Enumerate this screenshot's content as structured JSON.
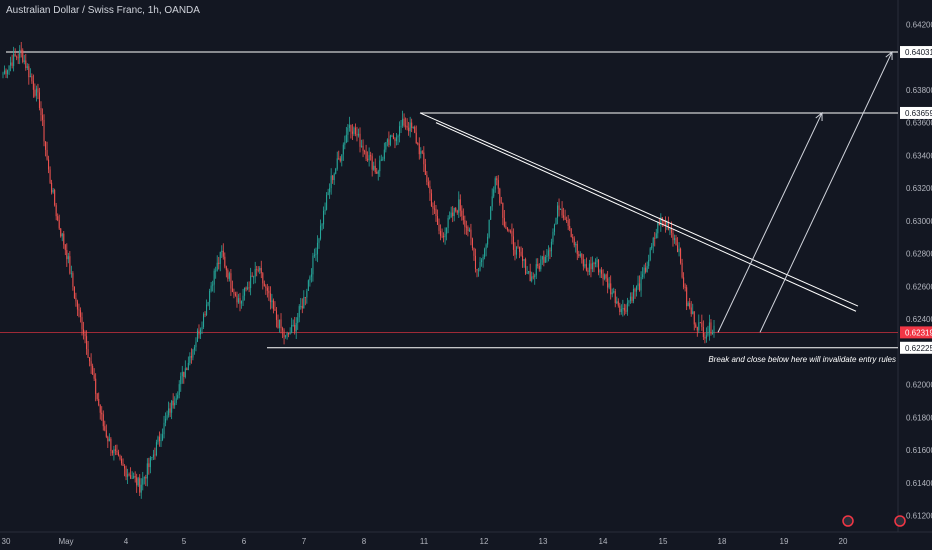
{
  "chart_data": {
    "type": "candlestick",
    "title": "Australian Dollar / Swiss Franc, 1h, OANDA",
    "y_ticks": [
      "0.64200",
      "0.63800",
      "0.63600",
      "0.63400",
      "0.63200",
      "0.63000",
      "0.62800",
      "0.62600",
      "0.62400",
      "0.62000",
      "0.61800",
      "0.61600",
      "0.61400",
      "0.61200"
    ],
    "x_ticks": [
      "30",
      "May",
      "4",
      "5",
      "6",
      "7",
      "8",
      "11",
      "12",
      "13",
      "14",
      "15",
      "18",
      "19",
      "20"
    ],
    "ylim": [
      0.611,
      0.643
    ],
    "levels": [
      {
        "label": "0.64031",
        "value": 0.64031
      },
      {
        "label": "0.63659",
        "value": 0.63659
      },
      {
        "label": "0.62225",
        "value": 0.62225
      }
    ],
    "current_price": {
      "label": "0.62319",
      "value": 0.62319
    },
    "annotation": "Break and close below here will invalidate entry rules",
    "colors": {
      "background": "#131722",
      "up": "#26a69a",
      "down": "#ef5350",
      "level": "#ffffff",
      "current": "#f23645"
    },
    "path": [
      0.639,
      0.6398,
      0.6403,
      0.6388,
      0.6372,
      0.633,
      0.63,
      0.628,
      0.625,
      0.623,
      0.62,
      0.6175,
      0.616,
      0.615,
      0.6145,
      0.6138,
      0.615,
      0.6165,
      0.618,
      0.6195,
      0.621,
      0.6225,
      0.6242,
      0.6265,
      0.628,
      0.6262,
      0.625,
      0.6262,
      0.627,
      0.6255,
      0.624,
      0.6228,
      0.6236,
      0.6252,
      0.6275,
      0.63,
      0.6325,
      0.634,
      0.636,
      0.635,
      0.634,
      0.633,
      0.6345,
      0.6352,
      0.636,
      0.6355,
      0.6338,
      0.6312,
      0.629,
      0.63,
      0.631,
      0.6295,
      0.627,
      0.6285,
      0.633,
      0.63,
      0.6285,
      0.6275,
      0.6265,
      0.6275,
      0.6285,
      0.631,
      0.63,
      0.628,
      0.627,
      0.6275,
      0.6265,
      0.6255,
      0.6245,
      0.6255,
      0.6262,
      0.628,
      0.63,
      0.6298,
      0.6285,
      0.625,
      0.6238,
      0.6232,
      0.6236
    ]
  }
}
